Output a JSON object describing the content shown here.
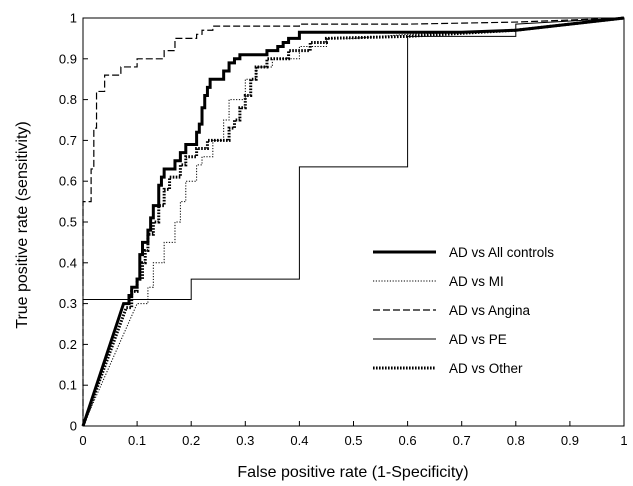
{
  "chart_data": {
    "type": "line",
    "title": "",
    "xlabel": "False positive rate (1-Specificity)",
    "ylabel": "True positive rate (sensitivity)",
    "xlim": [
      0,
      1
    ],
    "ylim": [
      0,
      1
    ],
    "x_ticks": [
      "0",
      "0.1",
      "0.2",
      "0.3",
      "0.4",
      "0.5",
      "0.6",
      "0.7",
      "0.8",
      "0.9",
      "1"
    ],
    "y_ticks": [
      "0",
      "0.1",
      "0.2",
      "0.3",
      "0.4",
      "0.5",
      "0.6",
      "0.7",
      "0.8",
      "0.9",
      "1"
    ],
    "grid": false,
    "legend_position": "lower-right",
    "series": [
      {
        "name": "AD vs All controls",
        "style": "thick-solid",
        "points": [
          [
            0,
            0
          ],
          [
            0.075,
            0.3
          ],
          [
            0.085,
            0.3
          ],
          [
            0.085,
            0.32
          ],
          [
            0.09,
            0.32
          ],
          [
            0.09,
            0.34
          ],
          [
            0.1,
            0.34
          ],
          [
            0.1,
            0.36
          ],
          [
            0.105,
            0.36
          ],
          [
            0.105,
            0.42
          ],
          [
            0.11,
            0.42
          ],
          [
            0.11,
            0.45
          ],
          [
            0.12,
            0.45
          ],
          [
            0.12,
            0.48
          ],
          [
            0.125,
            0.48
          ],
          [
            0.125,
            0.51
          ],
          [
            0.13,
            0.51
          ],
          [
            0.13,
            0.54
          ],
          [
            0.14,
            0.54
          ],
          [
            0.14,
            0.59
          ],
          [
            0.145,
            0.59
          ],
          [
            0.145,
            0.61
          ],
          [
            0.15,
            0.61
          ],
          [
            0.15,
            0.63
          ],
          [
            0.17,
            0.63
          ],
          [
            0.17,
            0.65
          ],
          [
            0.18,
            0.65
          ],
          [
            0.18,
            0.67
          ],
          [
            0.19,
            0.67
          ],
          [
            0.19,
            0.69
          ],
          [
            0.21,
            0.69
          ],
          [
            0.21,
            0.72
          ],
          [
            0.215,
            0.72
          ],
          [
            0.215,
            0.74
          ],
          [
            0.22,
            0.74
          ],
          [
            0.22,
            0.78
          ],
          [
            0.225,
            0.78
          ],
          [
            0.225,
            0.81
          ],
          [
            0.23,
            0.81
          ],
          [
            0.23,
            0.83
          ],
          [
            0.235,
            0.83
          ],
          [
            0.235,
            0.85
          ],
          [
            0.26,
            0.85
          ],
          [
            0.26,
            0.87
          ],
          [
            0.27,
            0.87
          ],
          [
            0.27,
            0.89
          ],
          [
            0.28,
            0.89
          ],
          [
            0.28,
            0.9
          ],
          [
            0.29,
            0.9
          ],
          [
            0.29,
            0.91
          ],
          [
            0.34,
            0.91
          ],
          [
            0.34,
            0.92
          ],
          [
            0.36,
            0.92
          ],
          [
            0.36,
            0.93
          ],
          [
            0.37,
            0.93
          ],
          [
            0.37,
            0.94
          ],
          [
            0.38,
            0.94
          ],
          [
            0.38,
            0.95
          ],
          [
            0.4,
            0.95
          ],
          [
            0.4,
            0.965
          ],
          [
            0.6,
            0.965
          ],
          [
            0.7,
            0.965
          ],
          [
            0.8,
            0.97
          ],
          [
            1,
            1
          ]
        ]
      },
      {
        "name": "AD vs MI",
        "style": "dotted-thin",
        "points": [
          [
            0,
            0
          ],
          [
            0.1,
            0.3
          ],
          [
            0.12,
            0.3
          ],
          [
            0.12,
            0.34
          ],
          [
            0.13,
            0.34
          ],
          [
            0.13,
            0.4
          ],
          [
            0.15,
            0.4
          ],
          [
            0.15,
            0.45
          ],
          [
            0.17,
            0.45
          ],
          [
            0.17,
            0.5
          ],
          [
            0.18,
            0.5
          ],
          [
            0.18,
            0.55
          ],
          [
            0.19,
            0.55
          ],
          [
            0.19,
            0.6
          ],
          [
            0.21,
            0.6
          ],
          [
            0.21,
            0.64
          ],
          [
            0.22,
            0.64
          ],
          [
            0.22,
            0.66
          ],
          [
            0.24,
            0.66
          ],
          [
            0.24,
            0.7
          ],
          [
            0.26,
            0.7
          ],
          [
            0.26,
            0.75
          ],
          [
            0.27,
            0.75
          ],
          [
            0.27,
            0.8
          ],
          [
            0.3,
            0.8
          ],
          [
            0.3,
            0.85
          ],
          [
            0.32,
            0.85
          ],
          [
            0.32,
            0.88
          ],
          [
            0.35,
            0.88
          ],
          [
            0.35,
            0.9
          ],
          [
            0.4,
            0.9
          ],
          [
            0.4,
            0.93
          ],
          [
            0.45,
            0.93
          ],
          [
            0.45,
            0.95
          ],
          [
            0.5,
            0.95
          ],
          [
            0.6,
            0.96
          ],
          [
            0.8,
            0.97
          ],
          [
            1,
            1
          ]
        ]
      },
      {
        "name": "AD vs Angina",
        "style": "dashed",
        "points": [
          [
            0,
            0
          ],
          [
            0,
            0.55
          ],
          [
            0.015,
            0.55
          ],
          [
            0.015,
            0.63
          ],
          [
            0.02,
            0.63
          ],
          [
            0.02,
            0.73
          ],
          [
            0.025,
            0.73
          ],
          [
            0.025,
            0.82
          ],
          [
            0.04,
            0.82
          ],
          [
            0.04,
            0.86
          ],
          [
            0.07,
            0.86
          ],
          [
            0.07,
            0.88
          ],
          [
            0.1,
            0.88
          ],
          [
            0.1,
            0.9
          ],
          [
            0.15,
            0.9
          ],
          [
            0.15,
            0.92
          ],
          [
            0.17,
            0.92
          ],
          [
            0.17,
            0.95
          ],
          [
            0.21,
            0.95
          ],
          [
            0.21,
            0.96
          ],
          [
            0.22,
            0.96
          ],
          [
            0.22,
            0.97
          ],
          [
            0.24,
            0.97
          ],
          [
            0.24,
            0.98
          ],
          [
            0.4,
            0.98
          ],
          [
            0.4,
            0.985
          ],
          [
            0.6,
            0.985
          ],
          [
            0.8,
            0.99
          ],
          [
            1,
            1
          ]
        ]
      },
      {
        "name": "AD vs PE",
        "style": "thin-solid",
        "points": [
          [
            0,
            0
          ],
          [
            0,
            0.31
          ],
          [
            0.2,
            0.31
          ],
          [
            0.2,
            0.36
          ],
          [
            0.4,
            0.36
          ],
          [
            0.4,
            0.635
          ],
          [
            0.6,
            0.635
          ],
          [
            0.6,
            0.955
          ],
          [
            0.8,
            0.955
          ],
          [
            0.8,
            0.985
          ],
          [
            1,
            1
          ]
        ]
      },
      {
        "name": "AD vs Other",
        "style": "dotted-thick",
        "points": [
          [
            0,
            0
          ],
          [
            0.08,
            0.29
          ],
          [
            0.09,
            0.29
          ],
          [
            0.09,
            0.33
          ],
          [
            0.1,
            0.33
          ],
          [
            0.1,
            0.36
          ],
          [
            0.11,
            0.36
          ],
          [
            0.11,
            0.4
          ],
          [
            0.115,
            0.4
          ],
          [
            0.115,
            0.43
          ],
          [
            0.12,
            0.43
          ],
          [
            0.12,
            0.47
          ],
          [
            0.13,
            0.47
          ],
          [
            0.13,
            0.5
          ],
          [
            0.14,
            0.5
          ],
          [
            0.14,
            0.54
          ],
          [
            0.15,
            0.54
          ],
          [
            0.15,
            0.58
          ],
          [
            0.16,
            0.58
          ],
          [
            0.16,
            0.61
          ],
          [
            0.18,
            0.61
          ],
          [
            0.18,
            0.64
          ],
          [
            0.19,
            0.64
          ],
          [
            0.19,
            0.66
          ],
          [
            0.21,
            0.66
          ],
          [
            0.21,
            0.68
          ],
          [
            0.23,
            0.68
          ],
          [
            0.23,
            0.7
          ],
          [
            0.27,
            0.7
          ],
          [
            0.27,
            0.73
          ],
          [
            0.28,
            0.73
          ],
          [
            0.28,
            0.75
          ],
          [
            0.29,
            0.75
          ],
          [
            0.29,
            0.78
          ],
          [
            0.3,
            0.78
          ],
          [
            0.3,
            0.81
          ],
          [
            0.31,
            0.81
          ],
          [
            0.31,
            0.85
          ],
          [
            0.32,
            0.85
          ],
          [
            0.32,
            0.88
          ],
          [
            0.34,
            0.88
          ],
          [
            0.34,
            0.9
          ],
          [
            0.38,
            0.9
          ],
          [
            0.38,
            0.92
          ],
          [
            0.42,
            0.92
          ],
          [
            0.42,
            0.94
          ],
          [
            0.45,
            0.94
          ],
          [
            0.45,
            0.95
          ],
          [
            0.6,
            0.955
          ],
          [
            0.8,
            0.97
          ],
          [
            1,
            1
          ]
        ]
      }
    ]
  }
}
